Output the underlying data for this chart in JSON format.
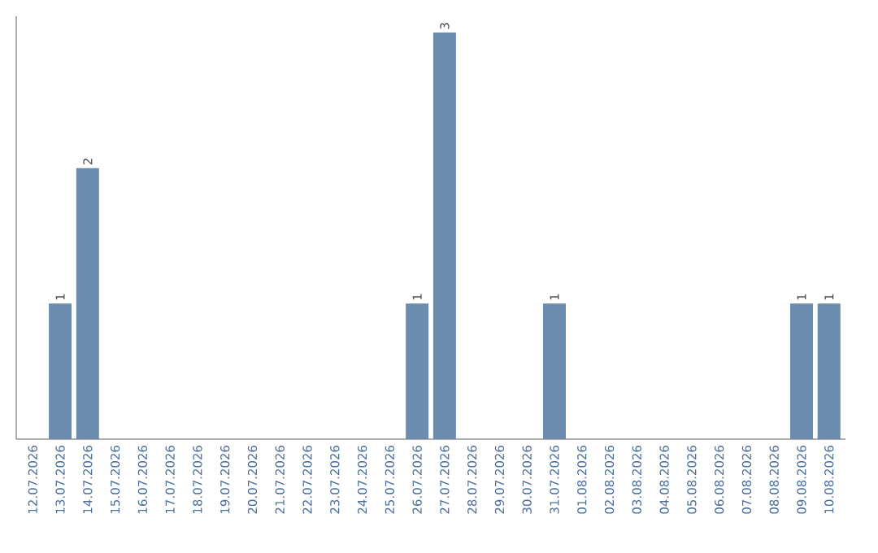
{
  "chart_data": {
    "type": "bar",
    "categories": [
      "12.07.2026",
      "13.07.2026",
      "14.07.2026",
      "15.07.2026",
      "16.07.2026",
      "17.07.2026",
      "18.07.2026",
      "19.07.2026",
      "20.07.2026",
      "21.07.2026",
      "22.07.2026",
      "23.07.2026",
      "24.07.2026",
      "25.07.2026",
      "26.07.2026",
      "27.07.2026",
      "28.07.2026",
      "29.07.2026",
      "30.07.2026",
      "31.07.2026",
      "01.08.2026",
      "02.08.2026",
      "03.08.2026",
      "04.08.2026",
      "05.08.2026",
      "06.08.2026",
      "07.08.2026",
      "08.08.2026",
      "09.08.2026",
      "10.08.2026"
    ],
    "values": [
      0,
      1,
      2,
      0,
      0,
      0,
      0,
      0,
      0,
      0,
      0,
      0,
      0,
      0,
      1,
      3,
      0,
      0,
      0,
      1,
      0,
      0,
      0,
      0,
      0,
      0,
      0,
      0,
      1,
      1
    ],
    "value_labels": [
      null,
      "1",
      "2",
      null,
      null,
      null,
      null,
      null,
      null,
      null,
      null,
      null,
      null,
      null,
      "1",
      "3",
      null,
      null,
      null,
      "1",
      null,
      null,
      null,
      null,
      null,
      null,
      null,
      null,
      "1",
      "1"
    ],
    "color": "#6b8cae",
    "ylim": [
      0,
      3.12
    ],
    "tick_labels": "x",
    "grid": false
  }
}
